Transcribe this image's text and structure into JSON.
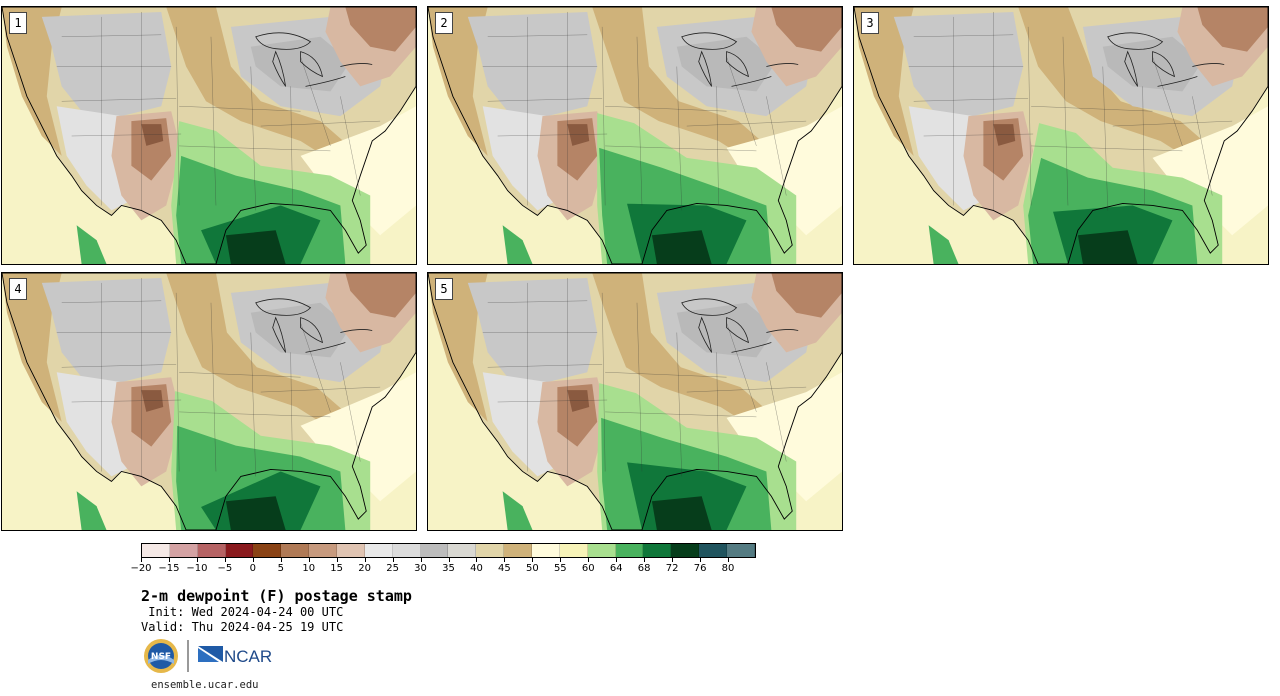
{
  "panels": [
    {
      "label": "1"
    },
    {
      "label": "2"
    },
    {
      "label": "3"
    },
    {
      "label": "4"
    },
    {
      "label": "5"
    }
  ],
  "colorbar": {
    "colors": [
      "#f5e9e6",
      "#d4a2a3",
      "#b66364",
      "#8a1a1e",
      "#8a4315",
      "#b07a56",
      "#c79a7e",
      "#e0c4b2",
      "#e9e9e9",
      "#dcdcdc",
      "#bcbcbc",
      "#d9d8d2",
      "#e1d5a9",
      "#cfb27a",
      "#fffbdc",
      "#f7f3b8",
      "#a8df8f",
      "#49b25e",
      "#10773a",
      "#063d1b",
      "#20545e",
      "#547b82"
    ],
    "tick_labels": [
      "−20",
      "−15",
      "−10",
      "−5",
      "0",
      "5",
      "10",
      "15",
      "20",
      "25",
      "30",
      "35",
      "40",
      "45",
      "50",
      "55",
      "60",
      "64",
      "68",
      "72",
      "76",
      "80"
    ]
  },
  "title": "2-m dewpoint (F) postage stamp",
  "init_line": " Init: Wed 2024-04-24 00 UTC",
  "valid_line": "Valid: Thu 2024-04-25 19 UTC",
  "logos": {
    "nsf_text": "NSF",
    "ncar_text": "NCAR"
  },
  "website": "ensemble.ucar.edu"
}
